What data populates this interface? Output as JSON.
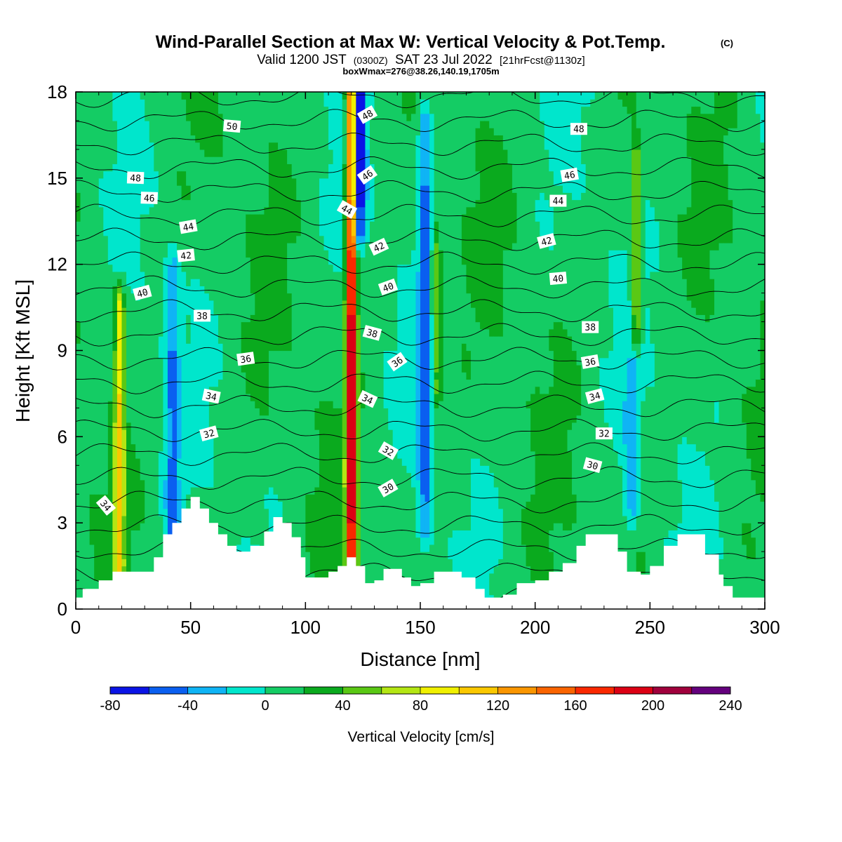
{
  "header": {
    "title": "Wind-Parallel Section at Max W: Vertical Velocity & Pot.Temp.",
    "copyright": "(C)",
    "valid_prefix": "Valid 1200 JST",
    "valid_utc": "(0300Z)",
    "valid_date": "SAT 23 Jul 2022",
    "forecast_tag": "[21hrFcst@1130z]",
    "box_info": "boxWmax=276@38.26,140.19,1705m"
  },
  "chart_data": {
    "type": "heatmap",
    "title": "Wind-Parallel Section at Max W: Vertical Velocity & Pot.Temp.",
    "xlabel": "Distance [nm]",
    "ylabel": "Height [Kft MSL]",
    "xlim": [
      0,
      300
    ],
    "ylim": [
      0,
      18
    ],
    "x_ticks": [
      "0",
      "50",
      "100",
      "150",
      "200",
      "250",
      "300"
    ],
    "y_ticks": [
      "0",
      "3",
      "6",
      "9",
      "12",
      "15",
      "18"
    ],
    "colorbar": {
      "label": "Vertical Velocity [cm/s]",
      "tick_labels": [
        "-80",
        "-40",
        "0",
        "40",
        "80",
        "120",
        "160",
        "200",
        "240"
      ],
      "levels": [
        -80,
        -60,
        -40,
        -20,
        0,
        20,
        40,
        60,
        80,
        100,
        120,
        140,
        160,
        180,
        200,
        220,
        240
      ],
      "colors": [
        "#0a14e6",
        "#0a5ff0",
        "#0fb4f5",
        "#00e6cc",
        "#14cc64",
        "#0aaa1e",
        "#5ac814",
        "#b4e614",
        "#f0f000",
        "#fac800",
        "#fa9600",
        "#fa6400",
        "#fa2800",
        "#dc0014",
        "#a0003c",
        "#64007d"
      ]
    },
    "updraft_columns": [
      {
        "x": 120,
        "y_range": [
          0.6,
          18
        ],
        "peak_w": 210
      },
      {
        "x": 19,
        "y_range": [
          1.5,
          10.5
        ],
        "peak_w": 90
      },
      {
        "x": 244,
        "y_range": [
          9.5,
          15.5
        ],
        "peak_w": 70
      },
      {
        "x": 157,
        "y_range": [
          7.5,
          13
        ],
        "peak_w": 50
      }
    ],
    "downdraft_columns": [
      {
        "x": 123,
        "y_range": [
          13.5,
          18
        ],
        "min_w": -80
      },
      {
        "x": 152,
        "y_range": [
          3,
          17
        ],
        "min_w": -40
      },
      {
        "x": 42,
        "y_range": [
          1.5,
          11.5
        ],
        "min_w": -35
      },
      {
        "x": 242,
        "y_range": [
          3.5,
          8
        ],
        "min_w": -30
      }
    ],
    "terrain": [
      [
        0,
        0.4
      ],
      [
        3,
        0.7
      ],
      [
        10,
        1
      ],
      [
        16,
        1.3
      ],
      [
        30,
        1.3
      ],
      [
        34,
        1.8
      ],
      [
        38,
        2.6
      ],
      [
        42,
        3
      ],
      [
        46,
        3.5
      ],
      [
        50,
        3.9
      ],
      [
        54,
        3.5
      ],
      [
        58,
        3
      ],
      [
        62,
        2.6
      ],
      [
        66,
        2.2
      ],
      [
        70,
        2
      ],
      [
        76,
        2.2
      ],
      [
        82,
        2.7
      ],
      [
        86,
        3.2
      ],
      [
        90,
        3
      ],
      [
        94,
        2.5
      ],
      [
        98,
        1.8
      ],
      [
        100,
        1.1
      ],
      [
        110,
        1.3
      ],
      [
        114,
        1.5
      ],
      [
        118,
        1.8
      ],
      [
        122,
        1.5
      ],
      [
        126,
        0.9
      ],
      [
        130,
        1
      ],
      [
        134,
        1.4
      ],
      [
        138,
        1.4
      ],
      [
        142,
        1.1
      ],
      [
        146,
        0.8
      ],
      [
        150,
        0.9
      ],
      [
        156,
        1.3
      ],
      [
        162,
        1.3
      ],
      [
        168,
        1.1
      ],
      [
        174,
        0.7
      ],
      [
        178,
        0.4
      ],
      [
        186,
        0.5
      ],
      [
        192,
        0.9
      ],
      [
        200,
        1
      ],
      [
        206,
        1.3
      ],
      [
        212,
        1.6
      ],
      [
        218,
        2.2
      ],
      [
        222,
        2.6
      ],
      [
        230,
        2.6
      ],
      [
        236,
        2
      ],
      [
        240,
        1.3
      ],
      [
        246,
        1.2
      ],
      [
        250,
        1.5
      ],
      [
        256,
        2.2
      ],
      [
        262,
        2.6
      ],
      [
        270,
        2.6
      ],
      [
        274,
        1.9
      ],
      [
        280,
        1.2
      ],
      [
        282,
        0.8
      ],
      [
        286,
        0.4
      ],
      [
        300,
        0.4
      ]
    ],
    "theta_contours": {
      "units": "°C",
      "interval": 1,
      "range": [
        29,
        51
      ],
      "labels": [
        "50",
        "48",
        "46",
        "44",
        "42",
        "40",
        "38",
        "36",
        "34",
        "32",
        "34",
        "48",
        "46",
        "44",
        "42",
        "40",
        "38",
        "36",
        "34",
        "32",
        "30",
        "48",
        "46",
        "44",
        "42",
        "40",
        "38",
        "36",
        "34",
        "32",
        "30"
      ]
    }
  }
}
